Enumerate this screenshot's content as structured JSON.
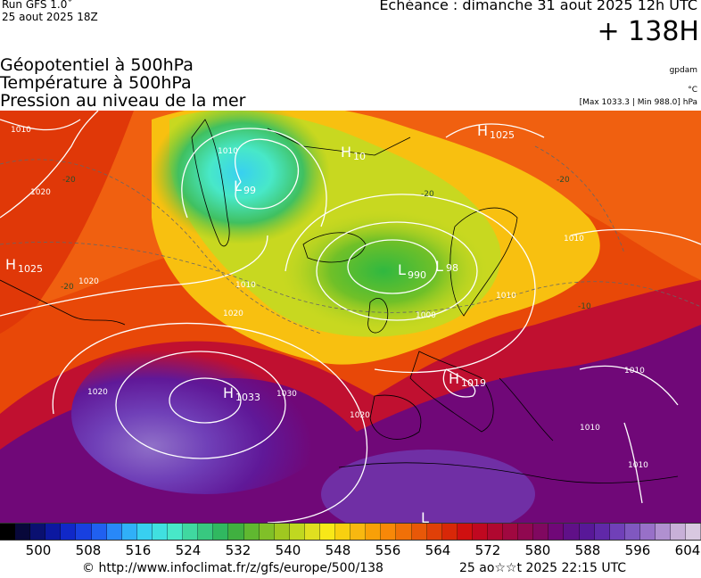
{
  "header": {
    "run_label": "Run GFS 1.0˚",
    "run_date": "25 aout 2025 18Z",
    "valid_time": "Echéance : dimanche 31 aout 2025 12h UTC",
    "lead_time": "+ 138H"
  },
  "titles": {
    "line1": "Géopotentiel à 500hPa",
    "line2": "Température à 500hPa",
    "line3": "Pression au niveau de la mer"
  },
  "units": {
    "geopotential": "gpdam",
    "temperature": "°C",
    "pressure_range": "[Max 1033.3 | Min 988.0] hPa"
  },
  "map": {
    "pressure_centers": [
      {
        "type": "H",
        "value": "1025",
        "label": "H1025-greenland-east"
      },
      {
        "type": "H",
        "value": "10",
        "label": "H-north-atlantic"
      },
      {
        "type": "L",
        "value": "99",
        "label": "L-greenland"
      },
      {
        "type": "H",
        "value": "1025",
        "label": "H-west"
      },
      {
        "type": "L",
        "value": "990",
        "label": "L-north-sea"
      },
      {
        "type": "L",
        "value": "98",
        "label": "L-scandinavia"
      },
      {
        "type": "H",
        "value": "1033",
        "label": "H-azores"
      },
      {
        "type": "H",
        "value": "1019",
        "label": "H-alps"
      }
    ],
    "isobar_labels": [
      "1010",
      "1020",
      "1010",
      "1020",
      "1020",
      "1010",
      "1020",
      "1030",
      "1010",
      "1000",
      "1010",
      "1010",
      "1010",
      "1010",
      "1020"
    ],
    "isotherm_labels": [
      "-20",
      "-20",
      "-10",
      "-20",
      "-20"
    ]
  },
  "colorbar": {
    "colors": [
      "#000000",
      "#08083a",
      "#0a1070",
      "#0c18a0",
      "#1028c8",
      "#1840e0",
      "#2060f0",
      "#2888f8",
      "#30b0f8",
      "#38d0f0",
      "#40e0e0",
      "#48e8c8",
      "#40d8a0",
      "#38c880",
      "#30b860",
      "#40b040",
      "#60b830",
      "#80c028",
      "#a0c820",
      "#c0d820",
      "#e0e020",
      "#f8e818",
      "#f8d010",
      "#f8b810",
      "#f8a008",
      "#f88808",
      "#f07008",
      "#e85808",
      "#e04008",
      "#d82808",
      "#d01010",
      "#c00820",
      "#b00830",
      "#a00840",
      "#900850",
      "#800860",
      "#700878",
      "#601088",
      "#581898",
      "#6028a8",
      "#7040b8",
      "#8058c0",
      "#9870c8",
      "#b090d0",
      "#c8b0d8",
      "#d8c8e0"
    ],
    "tick_labels": [
      "500",
      "508",
      "516",
      "524",
      "532",
      "540",
      "548",
      "556",
      "564",
      "572",
      "580",
      "588",
      "596",
      "604"
    ]
  },
  "footer": {
    "url": "© http://www.infoclimat.fr/z/gfs/europe/500/138",
    "date": "25 ao☆☆t 2025 22:15 UTC"
  }
}
